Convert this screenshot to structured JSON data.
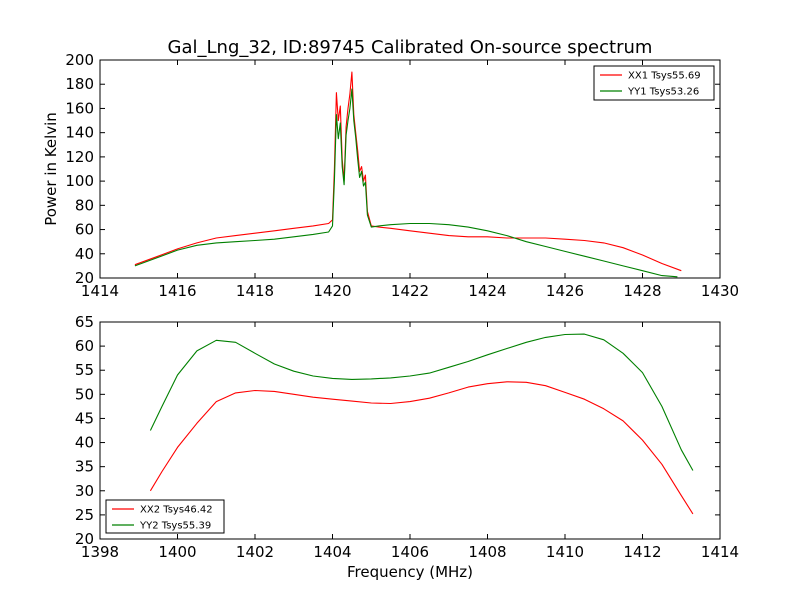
{
  "chart_data": [
    {
      "type": "line",
      "title": "Gal_Lng_32, ID:89745 Calibrated On-source spectrum",
      "xlabel": "",
      "ylabel": "Power in Kelvin",
      "xlim": [
        1414,
        1430
      ],
      "ylim": [
        20,
        200
      ],
      "xticks": [
        1414,
        1416,
        1418,
        1420,
        1422,
        1424,
        1426,
        1428,
        1430
      ],
      "yticks": [
        20,
        40,
        60,
        80,
        100,
        120,
        140,
        160,
        180,
        200
      ],
      "legend": "top-right",
      "series": [
        {
          "name": "XX1 Tsys55.69",
          "color": "#ff0000",
          "x": [
            1414.9,
            1415.5,
            1416.0,
            1416.5,
            1417.0,
            1417.5,
            1418.0,
            1418.5,
            1419.0,
            1419.5,
            1419.9,
            1420.0,
            1420.05,
            1420.1,
            1420.15,
            1420.2,
            1420.25,
            1420.3,
            1420.35,
            1420.4,
            1420.45,
            1420.5,
            1420.55,
            1420.6,
            1420.65,
            1420.7,
            1420.75,
            1420.8,
            1420.85,
            1420.9,
            1421.0,
            1421.2,
            1421.5,
            1422.0,
            1422.5,
            1423.0,
            1423.5,
            1424.0,
            1424.5,
            1425.0,
            1425.5,
            1426.0,
            1426.5,
            1427.0,
            1427.5,
            1428.0,
            1428.5,
            1429.0
          ],
          "values": [
            31,
            38,
            44,
            49,
            53,
            55,
            57,
            59,
            61,
            63,
            65,
            68,
            110,
            173,
            150,
            162,
            118,
            100,
            145,
            160,
            172,
            190,
            155,
            140,
            125,
            108,
            112,
            100,
            105,
            75,
            63,
            62,
            61,
            59,
            57,
            55,
            54,
            54,
            53,
            53,
            53,
            52,
            51,
            49,
            45,
            39,
            32,
            26
          ]
        },
        {
          "name": "YY1 Tsys53.26",
          "color": "#008000",
          "x": [
            1414.9,
            1415.5,
            1416.0,
            1416.5,
            1417.0,
            1417.5,
            1418.0,
            1418.5,
            1419.0,
            1419.5,
            1419.9,
            1420.0,
            1420.05,
            1420.1,
            1420.15,
            1420.2,
            1420.25,
            1420.3,
            1420.35,
            1420.4,
            1420.45,
            1420.5,
            1420.55,
            1420.6,
            1420.65,
            1420.7,
            1420.75,
            1420.8,
            1420.85,
            1420.9,
            1421.0,
            1421.2,
            1421.5,
            1422.0,
            1422.5,
            1423.0,
            1423.5,
            1424.0,
            1424.5,
            1425.0,
            1425.5,
            1426.0,
            1426.5,
            1427.0,
            1427.5,
            1428.0,
            1428.5,
            1428.9
          ],
          "values": [
            30,
            37,
            43,
            47,
            49,
            50,
            51,
            52,
            54,
            56,
            58,
            63,
            100,
            155,
            135,
            148,
            112,
            97,
            138,
            150,
            160,
            176,
            150,
            136,
            118,
            103,
            108,
            96,
            99,
            72,
            62,
            63,
            64,
            65,
            65,
            64,
            62,
            59,
            55,
            50,
            46,
            42,
            38,
            34,
            30,
            26,
            22,
            21
          ]
        }
      ]
    },
    {
      "type": "line",
      "title": "",
      "xlabel": "Frequency (MHz)",
      "ylabel": "",
      "xlim": [
        1398,
        1414
      ],
      "ylim": [
        20,
        65
      ],
      "xticks": [
        1398,
        1400,
        1402,
        1404,
        1406,
        1408,
        1410,
        1412,
        1414
      ],
      "yticks": [
        20,
        25,
        30,
        35,
        40,
        45,
        50,
        55,
        60,
        65
      ],
      "legend": "bottom-left",
      "series": [
        {
          "name": "XX2 Tsys46.42",
          "color": "#ff0000",
          "x": [
            1399.3,
            1399.6,
            1400.0,
            1400.5,
            1401.0,
            1401.5,
            1402.0,
            1402.5,
            1403.0,
            1403.5,
            1404.0,
            1404.5,
            1405.0,
            1405.5,
            1406.0,
            1406.5,
            1407.0,
            1407.5,
            1408.0,
            1408.5,
            1409.0,
            1409.5,
            1410.0,
            1410.5,
            1411.0,
            1411.5,
            1412.0,
            1412.5,
            1413.0,
            1413.3
          ],
          "values": [
            30,
            34,
            39,
            44,
            48.5,
            50.3,
            50.8,
            50.6,
            50,
            49.4,
            49,
            48.6,
            48.2,
            48.1,
            48.5,
            49.2,
            50.3,
            51.5,
            52.2,
            52.6,
            52.5,
            51.8,
            50.4,
            49,
            47,
            44.5,
            40.5,
            35.5,
            29,
            25.2
          ]
        },
        {
          "name": "YY2 Tsys55.39",
          "color": "#008000",
          "x": [
            1399.3,
            1399.6,
            1400.0,
            1400.5,
            1401.0,
            1401.5,
            1402.0,
            1402.5,
            1403.0,
            1403.5,
            1404.0,
            1404.5,
            1405.0,
            1405.5,
            1406.0,
            1406.5,
            1407.0,
            1407.5,
            1408.0,
            1408.5,
            1409.0,
            1409.5,
            1410.0,
            1410.5,
            1411.0,
            1411.5,
            1412.0,
            1412.5,
            1413.0,
            1413.3
          ],
          "values": [
            42.5,
            47.5,
            54,
            59,
            61.2,
            60.8,
            58.5,
            56.3,
            54.8,
            53.8,
            53.3,
            53.1,
            53.2,
            53.4,
            53.8,
            54.4,
            55.6,
            56.8,
            58.2,
            59.5,
            60.8,
            61.8,
            62.4,
            62.5,
            61.3,
            58.5,
            54.5,
            47.5,
            38.5,
            34.2
          ]
        }
      ]
    }
  ]
}
